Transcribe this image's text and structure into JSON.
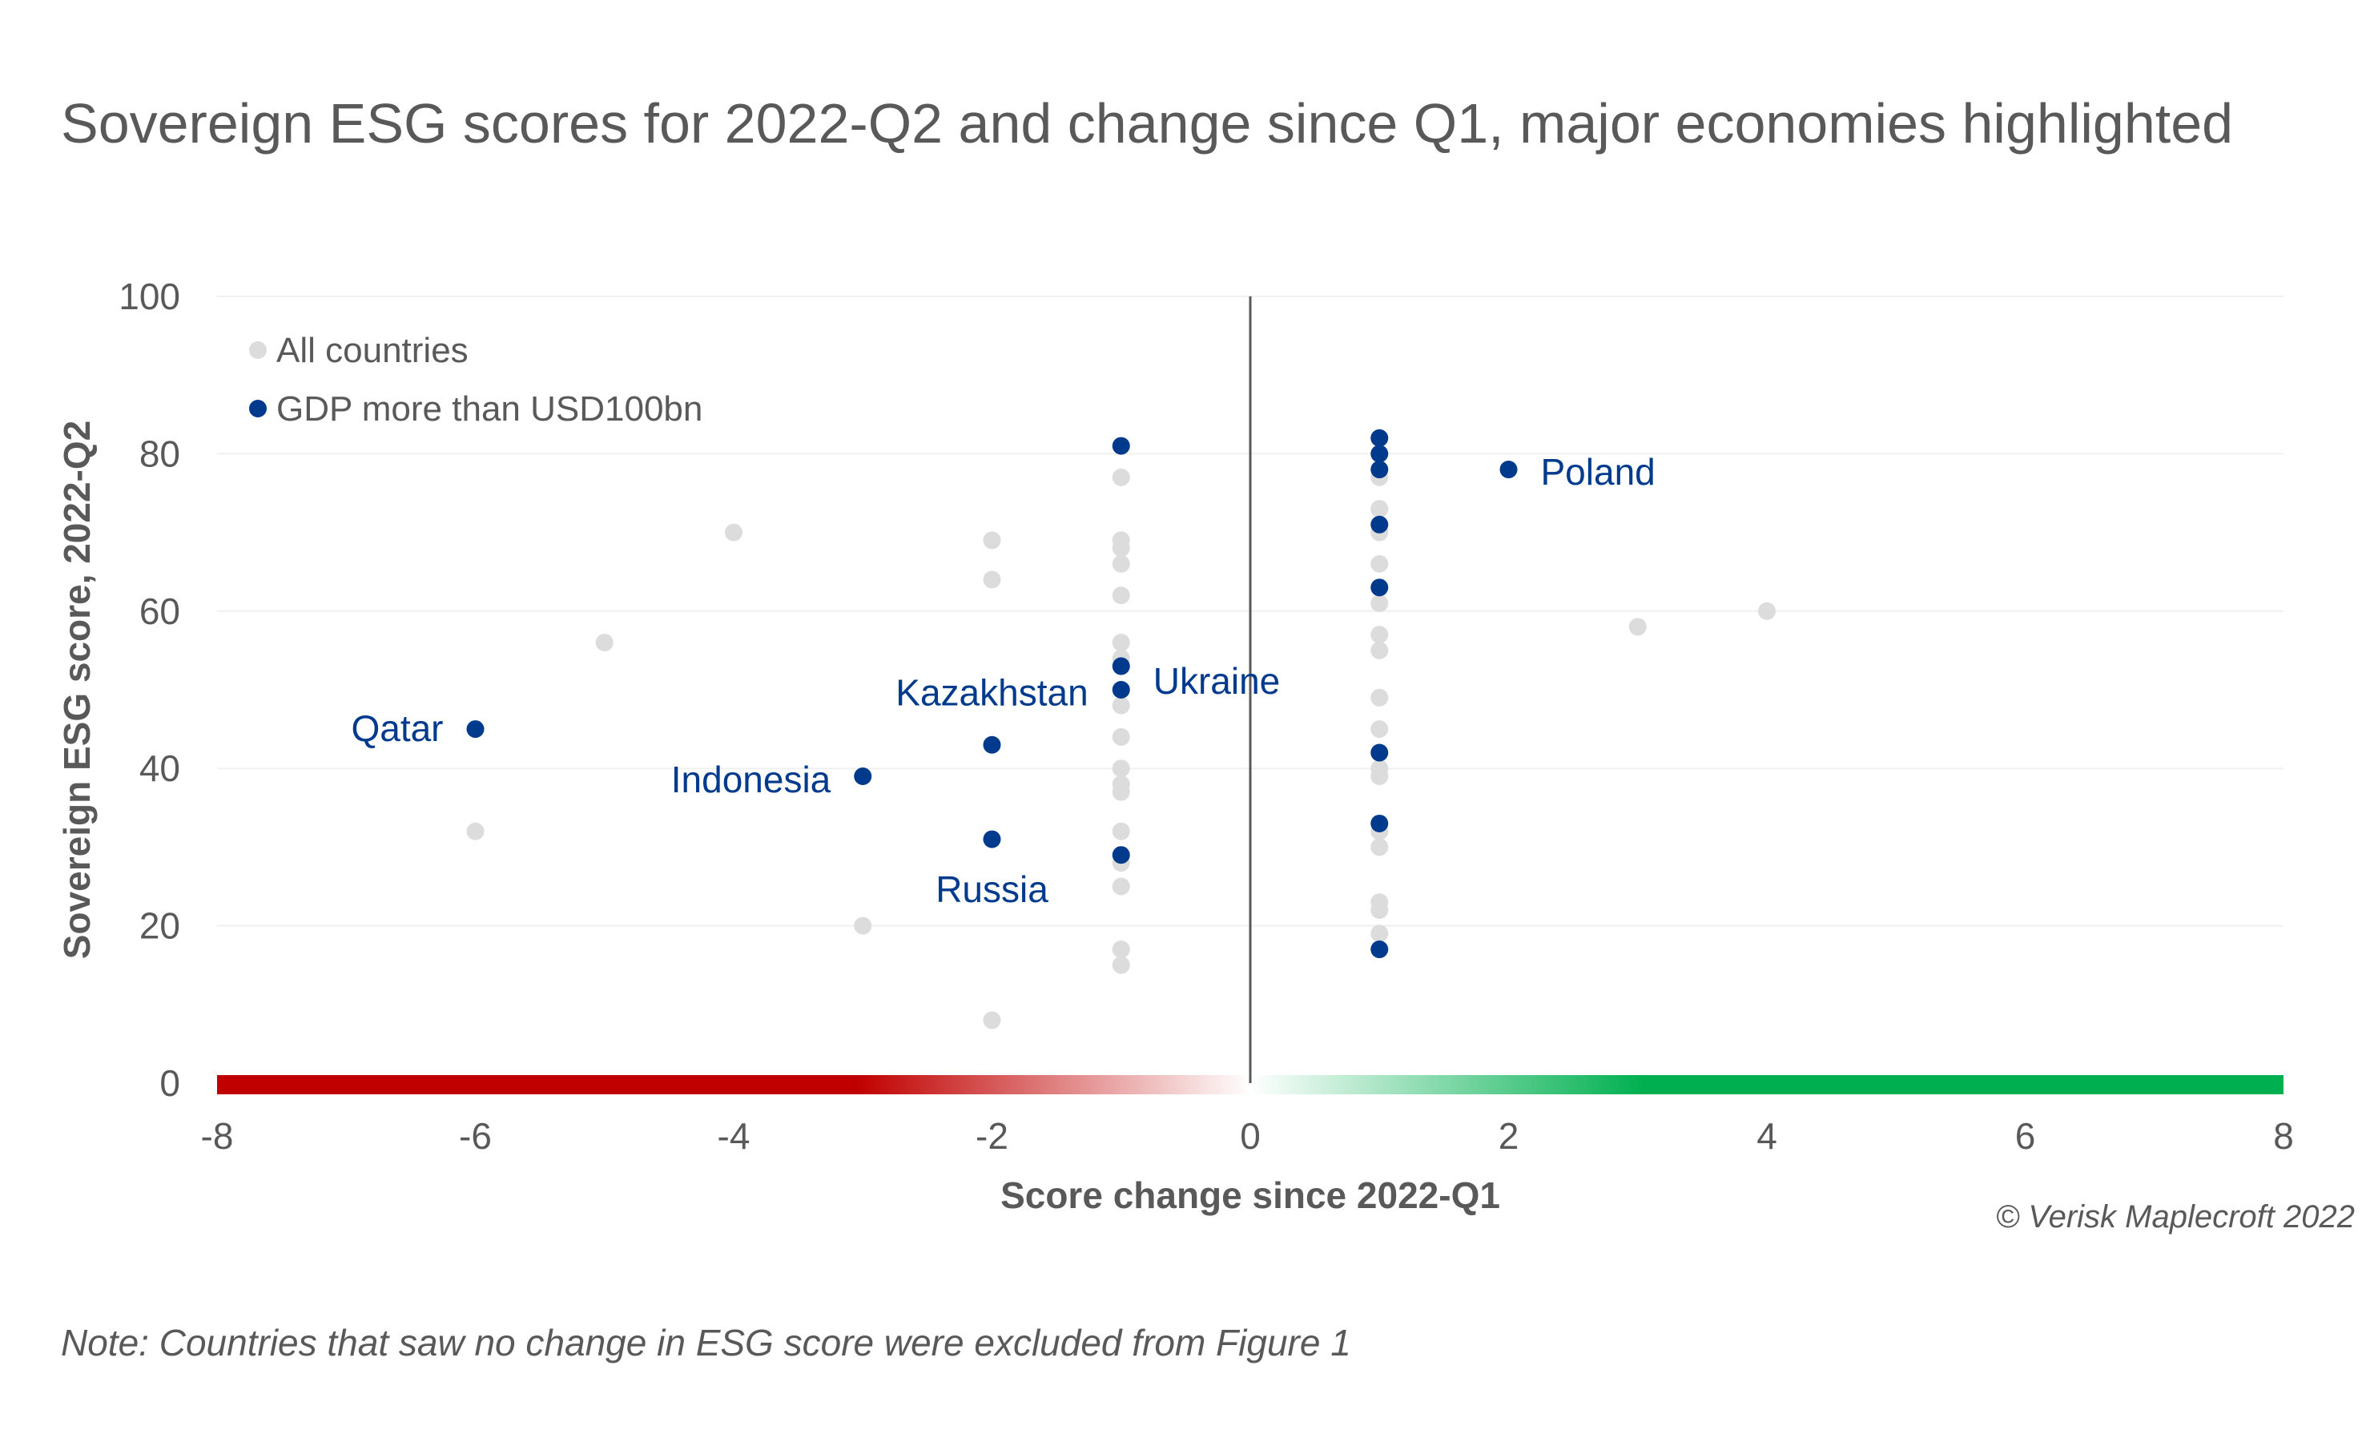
{
  "chart_data": {
    "type": "scatter",
    "title": "Sovereign ESG scores for 2022-Q2 and change since Q1, major economies highlighted",
    "xlabel": "Score change since 2022-Q1",
    "ylabel": "Sovereign ESG score, 2022-Q2",
    "xlim": [
      -8,
      8
    ],
    "ylim": [
      0,
      100
    ],
    "xticks": [
      "-8",
      "-6",
      "-4",
      "-2",
      "0",
      "2",
      "4",
      "6",
      "8"
    ],
    "yticks": [
      "0",
      "20",
      "40",
      "60",
      "80",
      "100"
    ],
    "grid": true,
    "legend_placement": "top-left",
    "colors": {
      "all": "#dcdcdc",
      "gdp": "#003a8c",
      "negative": "#c00000",
      "positive": "#00b050",
      "text": "#595959"
    },
    "series": [
      {
        "name": "All countries",
        "points": [
          [
            -6,
            32
          ],
          [
            -5,
            56
          ],
          [
            -4,
            70
          ],
          [
            -3,
            20
          ],
          [
            -2,
            69
          ],
          [
            -2,
            64
          ],
          [
            -2,
            8
          ],
          [
            -1,
            77
          ],
          [
            -1,
            69
          ],
          [
            -1,
            68
          ],
          [
            -1,
            66
          ],
          [
            -1,
            62
          ],
          [
            -1,
            56
          ],
          [
            -1,
            54
          ],
          [
            -1,
            48
          ],
          [
            -1,
            44
          ],
          [
            -1,
            40
          ],
          [
            -1,
            38
          ],
          [
            -1,
            37
          ],
          [
            -1,
            32
          ],
          [
            -1,
            28
          ],
          [
            -1,
            25
          ],
          [
            -1,
            17
          ],
          [
            -1,
            15
          ],
          [
            1,
            77
          ],
          [
            1,
            73
          ],
          [
            1,
            70
          ],
          [
            1,
            66
          ],
          [
            1,
            61
          ],
          [
            1,
            57
          ],
          [
            1,
            55
          ],
          [
            1,
            49
          ],
          [
            1,
            45
          ],
          [
            1,
            40
          ],
          [
            1,
            39
          ],
          [
            1,
            32
          ],
          [
            1,
            30
          ],
          [
            1,
            23
          ],
          [
            1,
            22
          ],
          [
            1,
            19
          ],
          [
            3,
            58
          ],
          [
            4,
            60
          ]
        ]
      },
      {
        "name": "GDP more than USD100bn",
        "points": [
          {
            "x": -6,
            "y": 45,
            "label": "Qatar"
          },
          {
            "x": -3,
            "y": 39,
            "label": "Indonesia"
          },
          {
            "x": -2,
            "y": 43,
            "label": "Kazakhstan"
          },
          {
            "x": -2,
            "y": 31,
            "label": "Russia"
          },
          {
            "x": -1,
            "y": 81
          },
          {
            "x": -1,
            "y": 53
          },
          {
            "x": -1,
            "y": 50,
            "label": "Ukraine"
          },
          {
            "x": -1,
            "y": 29
          },
          {
            "x": 1,
            "y": 82
          },
          {
            "x": 1,
            "y": 80
          },
          {
            "x": 1,
            "y": 78
          },
          {
            "x": 1,
            "y": 71
          },
          {
            "x": 1,
            "y": 63
          },
          {
            "x": 1,
            "y": 42
          },
          {
            "x": 1,
            "y": 33
          },
          {
            "x": 1,
            "y": 17
          },
          {
            "x": 2,
            "y": 78,
            "label": "Poland"
          }
        ]
      }
    ]
  },
  "copyright": "© Verisk Maplecroft 2022",
  "note": "Note: Countries that saw no change in ESG score were excluded from Figure 1"
}
